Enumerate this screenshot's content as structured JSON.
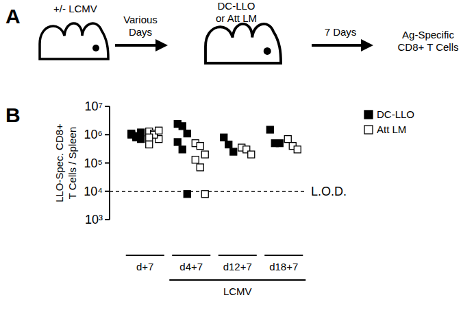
{
  "diagram": {
    "panel_label": "A",
    "labels": [
      "+/- LCMV",
      "Various",
      "Days",
      "DC-LLO",
      "or Att LM",
      "7 Days",
      "Ag-Specific",
      "CD8+ T Cells"
    ]
  },
  "chart_data": {
    "type": "scatter",
    "panel_label": "B",
    "y_label": [
      "LLO-Spec. CD8+",
      "T Cells / Spleen"
    ],
    "categories": [
      "d+7",
      "d4+7",
      "d12+7",
      "d18+7"
    ],
    "group_annotation": {
      "label": "LCMV",
      "categories": [
        "d4+7",
        "d12+7",
        "d18+7"
      ]
    },
    "log": "y",
    "ylim": [
      1000,
      10000000
    ],
    "yticks": [
      {
        "value": 1000,
        "label": "10³"
      },
      {
        "value": 10000,
        "label": "10⁴"
      },
      {
        "value": 100000,
        "label": "10⁵"
      },
      {
        "value": 1000000,
        "label": "10⁶"
      },
      {
        "value": 10000000,
        "label": "10⁷"
      }
    ],
    "reference_line": {
      "value": 10000,
      "label": "L.O.D.",
      "line_style": "dashed"
    },
    "legend": "top-right",
    "series": [
      {
        "name": "DC-LLO",
        "color": "#000000",
        "marker": "filled-square",
        "x": [
          "d+7",
          "d+7",
          "d+7",
          "d+7",
          "d+7",
          "d+7",
          "d4+7",
          "d4+7",
          "d4+7",
          "d4+7",
          "d4+7",
          "d4+7",
          "d12+7",
          "d12+7",
          "d12+7",
          "d18+7",
          "d18+7",
          "d18+7"
        ],
        "values": [
          1100000,
          900000,
          700000,
          1000000,
          800000,
          1200000,
          2400000,
          2000000,
          1100000,
          550000,
          300000,
          8000,
          800000,
          450000,
          250000,
          1500000,
          500000,
          500000
        ]
      },
      {
        "name": "Att LM",
        "color": "#000000",
        "marker": "open-square",
        "x": [
          "d+7",
          "d+7",
          "d+7",
          "d+7",
          "d+7",
          "d+7",
          "d+7",
          "d4+7",
          "d4+7",
          "d4+7",
          "d4+7",
          "d4+7",
          "d4+7",
          "d12+7",
          "d12+7",
          "d12+7",
          "d18+7",
          "d18+7",
          "d18+7"
        ],
        "values": [
          1300000,
          1100000,
          700000,
          450000,
          1000000,
          1400000,
          800000,
          500000,
          400000,
          200000,
          130000,
          70000,
          8000,
          350000,
          300000,
          200000,
          700000,
          400000,
          300000
        ]
      }
    ]
  }
}
